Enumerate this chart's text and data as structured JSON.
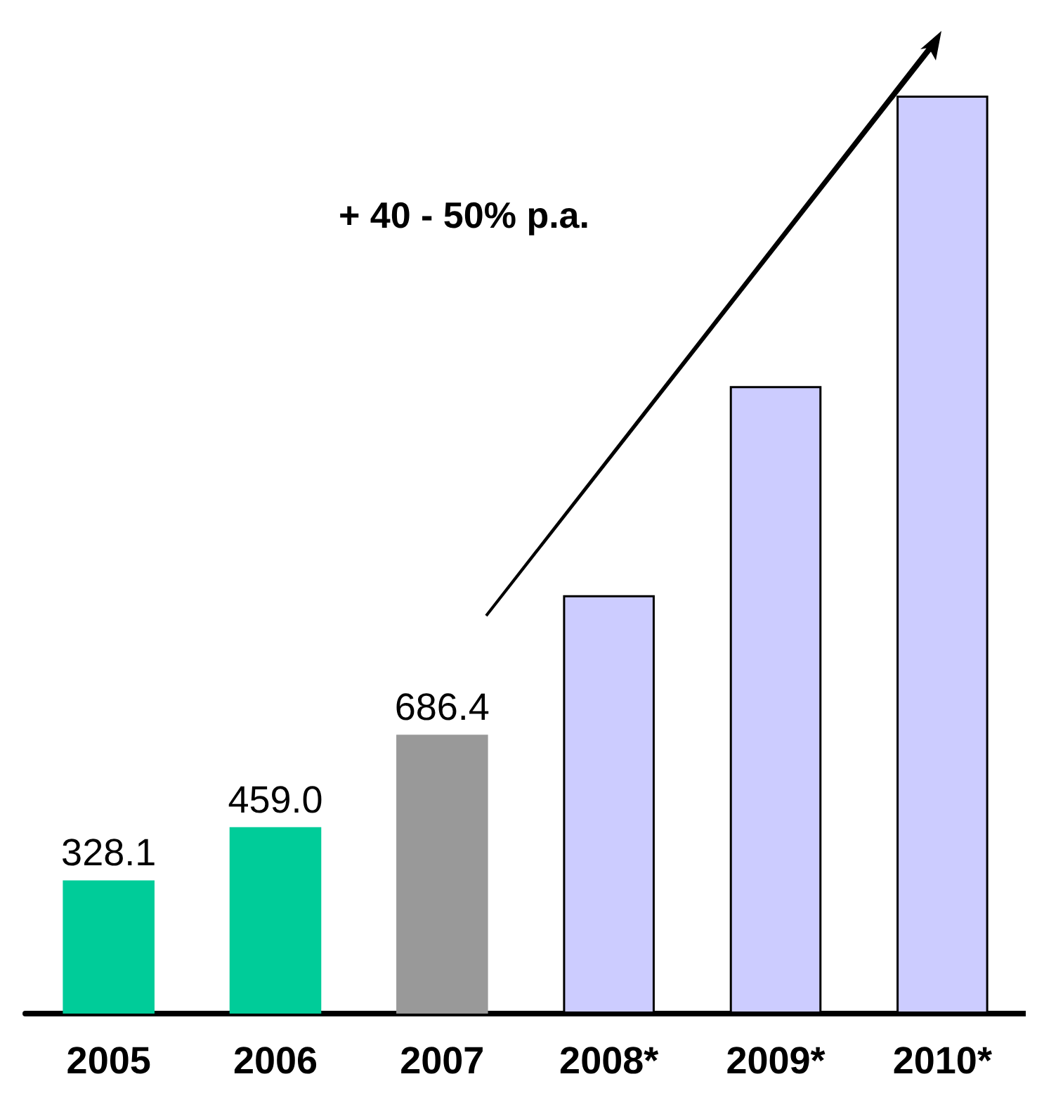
{
  "chart_data": {
    "type": "bar",
    "categories": [
      "2005",
      "2006",
      "2007",
      "2008*",
      "2009*",
      "2010*"
    ],
    "values": [
      328.1,
      459.0,
      686.4,
      1030,
      1545,
      2260
    ],
    "colors": [
      "#00cc99",
      "#00cc99",
      "#999999",
      "#ccccff",
      "#ccccff",
      "#ccccff"
    ],
    "value_labels": [
      "328.1",
      "459.0",
      "686.4",
      null,
      null,
      null
    ],
    "annotations": [
      "+ 40 - 50% p.a."
    ]
  }
}
